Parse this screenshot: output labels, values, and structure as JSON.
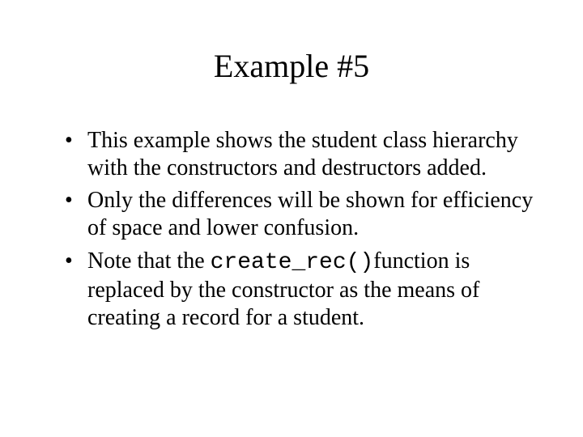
{
  "slide": {
    "title": "Example #5",
    "title_fontsize": 40,
    "body_fontsize": 28,
    "background_color": "#ffffff",
    "text_color": "#000000",
    "font_family": "Times New Roman",
    "code_font_family": "Courier New",
    "bullets": [
      {
        "pre": "This example shows the student class hierarchy with the constructors and destructors added.",
        "code": "",
        "post": ""
      },
      {
        "pre": "Only the differences will be shown for efficiency of space and lower confusion.",
        "code": "",
        "post": ""
      },
      {
        "pre": "Note that the ",
        "code": "create_rec()",
        "post": "function is replaced by the constructor as the means of creating a record for a student."
      }
    ]
  }
}
